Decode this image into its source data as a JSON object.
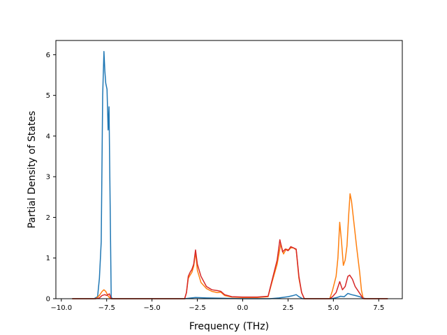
{
  "chart_data": {
    "type": "line",
    "title": "",
    "xlabel": "Frequency (THz)",
    "ylabel": "Partial Density of States",
    "xlim": [
      -10.3,
      8.8
    ],
    "ylim": [
      0,
      6.35
    ],
    "xticks": [
      -10.0,
      -7.5,
      -5.0,
      -2.5,
      0.0,
      2.5,
      5.0,
      7.5
    ],
    "xtick_labels": [
      "−10.0",
      "−7.5",
      "−5.0",
      "−2.5",
      "0.0",
      "2.5",
      "5.0",
      "7.5"
    ],
    "yticks": [
      0,
      1,
      2,
      3,
      4,
      5,
      6
    ],
    "ytick_labels": [
      "0",
      "1",
      "2",
      "3",
      "4",
      "5",
      "6"
    ],
    "grid": false,
    "legend": "none",
    "series": [
      {
        "color": "#1f77b4",
        "points": [
          [
            -9.4,
            0
          ],
          [
            -8.2,
            0
          ],
          [
            -8.0,
            0.05
          ],
          [
            -7.9,
            0.5
          ],
          [
            -7.8,
            1.4
          ],
          [
            -7.72,
            5.0
          ],
          [
            -7.65,
            6.08
          ],
          [
            -7.6,
            5.6
          ],
          [
            -7.55,
            5.3
          ],
          [
            -7.48,
            5.15
          ],
          [
            -7.42,
            4.15
          ],
          [
            -7.37,
            4.72
          ],
          [
            -7.3,
            2.0
          ],
          [
            -7.25,
            0.05
          ],
          [
            -7.2,
            0
          ],
          [
            -3.2,
            0
          ],
          [
            -3.0,
            0.01
          ],
          [
            -2.6,
            0.03
          ],
          [
            -2.0,
            0.02
          ],
          [
            -1.0,
            0.01
          ],
          [
            0.0,
            0.0
          ],
          [
            1.5,
            0.0
          ],
          [
            2.0,
            0.02
          ],
          [
            2.5,
            0.05
          ],
          [
            2.8,
            0.08
          ],
          [
            2.95,
            0.1
          ],
          [
            3.1,
            0.05
          ],
          [
            3.3,
            0.0
          ],
          [
            4.9,
            0.0
          ],
          [
            5.2,
            0.03
          ],
          [
            5.4,
            0.06
          ],
          [
            5.6,
            0.05
          ],
          [
            5.8,
            0.13
          ],
          [
            6.0,
            0.1
          ],
          [
            6.2,
            0.08
          ],
          [
            6.45,
            0.05
          ],
          [
            6.6,
            0.02
          ],
          [
            6.8,
            0.0
          ],
          [
            8.0,
            0.0
          ]
        ]
      },
      {
        "color": "#ff7f0e",
        "points": [
          [
            -9.4,
            0
          ],
          [
            -8.1,
            0
          ],
          [
            -7.9,
            0.08
          ],
          [
            -7.75,
            0.18
          ],
          [
            -7.65,
            0.22
          ],
          [
            -7.55,
            0.18
          ],
          [
            -7.4,
            0.05
          ],
          [
            -7.25,
            0.0
          ],
          [
            -3.2,
            0.0
          ],
          [
            -3.1,
            0.15
          ],
          [
            -3.0,
            0.5
          ],
          [
            -2.9,
            0.58
          ],
          [
            -2.8,
            0.65
          ],
          [
            -2.7,
            0.8
          ],
          [
            -2.6,
            1.15
          ],
          [
            -2.5,
            0.7
          ],
          [
            -2.3,
            0.4
          ],
          [
            -2.0,
            0.25
          ],
          [
            -1.7,
            0.18
          ],
          [
            -1.4,
            0.15
          ],
          [
            -1.2,
            0.16
          ],
          [
            -1.0,
            0.08
          ],
          [
            -0.6,
            0.04
          ],
          [
            0.0,
            0.03
          ],
          [
            0.8,
            0.03
          ],
          [
            1.4,
            0.05
          ],
          [
            1.6,
            0.38
          ],
          [
            1.9,
            0.85
          ],
          [
            2.1,
            1.35
          ],
          [
            2.25,
            1.1
          ],
          [
            2.4,
            1.22
          ],
          [
            2.55,
            1.2
          ],
          [
            2.65,
            1.25
          ],
          [
            2.8,
            1.25
          ],
          [
            2.95,
            1.2
          ],
          [
            3.1,
            0.5
          ],
          [
            3.25,
            0.15
          ],
          [
            3.4,
            0.0
          ],
          [
            4.8,
            0.0
          ],
          [
            4.95,
            0.2
          ],
          [
            5.15,
            0.55
          ],
          [
            5.25,
            1.0
          ],
          [
            5.35,
            1.88
          ],
          [
            5.45,
            1.4
          ],
          [
            5.55,
            0.82
          ],
          [
            5.65,
            0.95
          ],
          [
            5.75,
            1.3
          ],
          [
            5.85,
            2.1
          ],
          [
            5.92,
            2.58
          ],
          [
            6.0,
            2.4
          ],
          [
            6.15,
            1.8
          ],
          [
            6.3,
            1.2
          ],
          [
            6.45,
            0.65
          ],
          [
            6.55,
            0.2
          ],
          [
            6.65,
            0.0
          ],
          [
            8.0,
            0.0
          ]
        ]
      },
      {
        "color": "#d62728",
        "points": [
          [
            -9.4,
            0
          ],
          [
            -8.1,
            0
          ],
          [
            -7.9,
            0.02
          ],
          [
            -7.75,
            0.08
          ],
          [
            -7.6,
            0.1
          ],
          [
            -7.5,
            0.08
          ],
          [
            -7.35,
            0.12
          ],
          [
            -7.25,
            0.0
          ],
          [
            -3.2,
            0.0
          ],
          [
            -3.1,
            0.15
          ],
          [
            -3.0,
            0.55
          ],
          [
            -2.9,
            0.65
          ],
          [
            -2.8,
            0.72
          ],
          [
            -2.7,
            0.85
          ],
          [
            -2.6,
            1.2
          ],
          [
            -2.5,
            0.85
          ],
          [
            -2.3,
            0.55
          ],
          [
            -2.0,
            0.3
          ],
          [
            -1.7,
            0.22
          ],
          [
            -1.4,
            0.2
          ],
          [
            -1.2,
            0.18
          ],
          [
            -1.0,
            0.1
          ],
          [
            -0.6,
            0.05
          ],
          [
            0.0,
            0.04
          ],
          [
            0.8,
            0.04
          ],
          [
            1.4,
            0.06
          ],
          [
            1.6,
            0.42
          ],
          [
            1.9,
            0.95
          ],
          [
            2.05,
            1.45
          ],
          [
            2.2,
            1.15
          ],
          [
            2.35,
            1.22
          ],
          [
            2.5,
            1.18
          ],
          [
            2.65,
            1.28
          ],
          [
            2.8,
            1.25
          ],
          [
            2.95,
            1.22
          ],
          [
            3.1,
            0.55
          ],
          [
            3.25,
            0.15
          ],
          [
            3.4,
            0.0
          ],
          [
            4.8,
            0.0
          ],
          [
            4.95,
            0.05
          ],
          [
            5.15,
            0.15
          ],
          [
            5.35,
            0.42
          ],
          [
            5.5,
            0.22
          ],
          [
            5.65,
            0.3
          ],
          [
            5.8,
            0.55
          ],
          [
            5.9,
            0.58
          ],
          [
            6.05,
            0.48
          ],
          [
            6.2,
            0.3
          ],
          [
            6.35,
            0.2
          ],
          [
            6.5,
            0.1
          ],
          [
            6.6,
            0.03
          ],
          [
            6.7,
            0.0
          ],
          [
            8.0,
            0.0
          ]
        ]
      }
    ]
  }
}
